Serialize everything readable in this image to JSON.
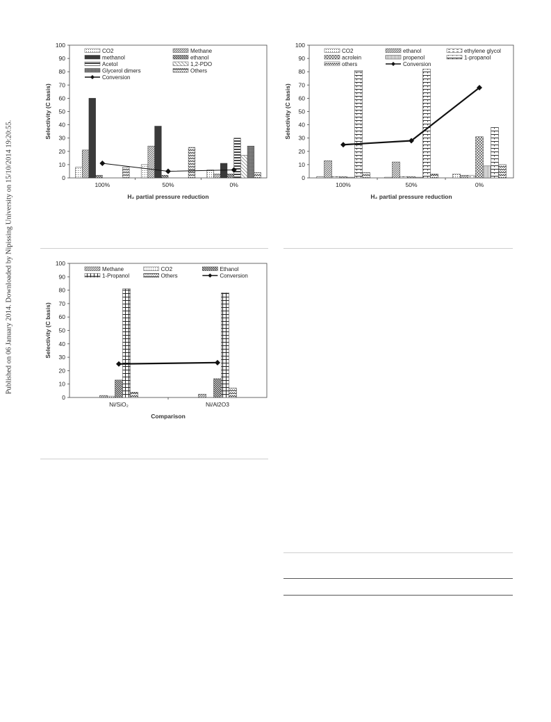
{
  "sidebar_text": "Published on 06 January 2014. Downloaded by Nipissing University on 15/10/2014 19:20:55.",
  "chart_data": [
    {
      "type": "bar",
      "ylabel": "Selectivity (C basis)",
      "xlabel": "H₂ partial pressure reduction",
      "ylim": [
        0,
        100
      ],
      "yticks": [
        0,
        10,
        20,
        30,
        40,
        50,
        60,
        70,
        80,
        90,
        100
      ],
      "categories": [
        "100%",
        "50%",
        "0%"
      ],
      "legend_columns": 2,
      "series": [
        {
          "name": "CO2",
          "values": [
            8,
            10,
            6
          ],
          "pattern": "dots"
        },
        {
          "name": "Methane",
          "values": [
            21,
            24,
            3
          ],
          "pattern": "diag-dense"
        },
        {
          "name": "methanol",
          "values": [
            60,
            39,
            11
          ],
          "pattern": "dark"
        },
        {
          "name": "ethanol",
          "values": [
            2,
            2,
            3
          ],
          "pattern": "diag-back"
        },
        {
          "name": "Acetol",
          "values": [
            0,
            0,
            30
          ],
          "pattern": "hbars"
        },
        {
          "name": "1,2-PDO",
          "values": [
            0,
            0,
            17
          ],
          "pattern": "diag-light"
        },
        {
          "name": "Glycerol dimers",
          "values": [
            0,
            0,
            24
          ],
          "pattern": "gray"
        },
        {
          "name": "Others",
          "values": [
            8,
            23,
            4
          ],
          "pattern": "zigzag"
        }
      ],
      "line_series": {
        "name": "Conversion",
        "values": [
          11,
          5,
          6
        ]
      }
    },
    {
      "type": "bar",
      "ylabel": "Selectivity (C basis)",
      "xlabel": "H₂ partial pressure reduction",
      "ylim": [
        0,
        100
      ],
      "yticks": [
        0,
        10,
        20,
        30,
        40,
        50,
        60,
        70,
        80,
        90,
        100
      ],
      "categories": [
        "100%",
        "50%",
        "0%"
      ],
      "legend_columns": 3,
      "series": [
        {
          "name": "CO2",
          "values": [
            1,
            0.5,
            3
          ],
          "pattern": "dots"
        },
        {
          "name": "ethanol",
          "values": [
            13,
            12,
            2
          ],
          "pattern": "diag-dense"
        },
        {
          "name": "ethylene glycol",
          "values": [
            1,
            1,
            2
          ],
          "pattern": "dashes"
        },
        {
          "name": "acrolein",
          "values": [
            1,
            1,
            31
          ],
          "pattern": "diag-cross"
        },
        {
          "name": "propenol",
          "values": [
            0.5,
            0.5,
            9
          ],
          "pattern": "fine"
        },
        {
          "name": "1-propanol",
          "values": [
            81,
            82,
            38
          ],
          "pattern": "grid-dash"
        },
        {
          "name": "others",
          "values": [
            4,
            3,
            10
          ],
          "pattern": "zigzag"
        }
      ],
      "line_series": {
        "name": "Conversion",
        "values": [
          25,
          28,
          68
        ]
      }
    },
    {
      "type": "bar",
      "ylabel": "Selectivity (C basis)",
      "xlabel": "Comparison",
      "ylim": [
        0,
        100
      ],
      "yticks": [
        0,
        10,
        20,
        30,
        40,
        50,
        60,
        70,
        80,
        90,
        100
      ],
      "categories": [
        "Ni/SiO₂",
        "Ni/Al2O3"
      ],
      "legend_columns": 3,
      "series": [
        {
          "name": "Methane",
          "values": [
            1.5,
            2.5
          ],
          "pattern": "diag-dense"
        },
        {
          "name": "CO2",
          "values": [
            1,
            0
          ],
          "pattern": "dots"
        },
        {
          "name": "Ethanol",
          "values": [
            13,
            14
          ],
          "pattern": "diag-back"
        },
        {
          "name": "1-Propanol",
          "values": [
            81,
            78
          ],
          "pattern": "grid"
        },
        {
          "name": "Others",
          "values": [
            4,
            7
          ],
          "pattern": "zigzag"
        }
      ],
      "line_series": {
        "name": "Conversion",
        "values": [
          25,
          26
        ]
      }
    }
  ]
}
